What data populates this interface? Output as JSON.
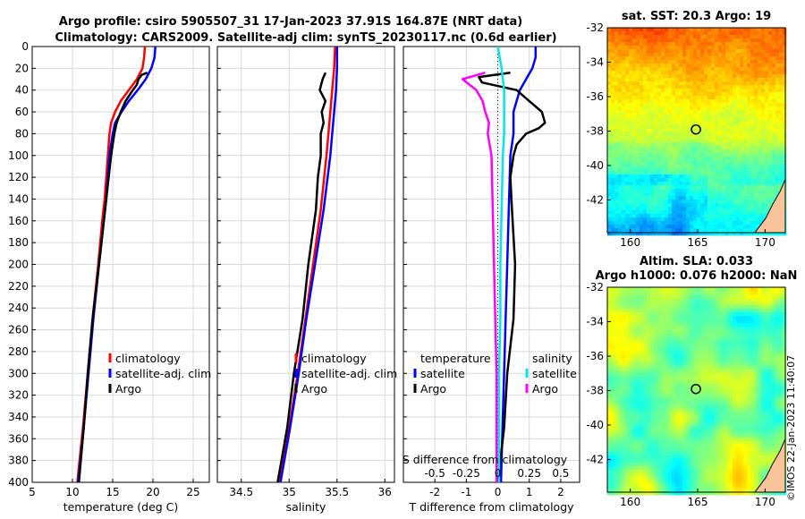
{
  "title": {
    "line1": "Argo profile: csiro 5905507_31 17-Jan-2023 37.91S 164.87E (NRT data)",
    "line2": "Climatology: CARS2009. Satellite-adj clim: synTS_20230117.nc (0.6d earlier)"
  },
  "credit": "©IMOS 22-Jan-2023 11:40:07",
  "colors": {
    "climatology": "#ff0000",
    "satellite": "#0000ff",
    "argo": "#000000",
    "sat_salinity": "#00e5ee",
    "argo_salinity": "#ff00ff"
  },
  "chart_data": [
    {
      "type": "line",
      "id": "temperature",
      "xlabel": "temperature (deg C)",
      "ylabel": "depth",
      "xlim": [
        5,
        27
      ],
      "ylim": [
        400,
        0
      ],
      "xticks": [
        5,
        10,
        15,
        20,
        25
      ],
      "yticks": [
        0,
        20,
        40,
        60,
        80,
        100,
        120,
        140,
        160,
        180,
        200,
        220,
        240,
        260,
        280,
        300,
        320,
        340,
        360,
        380,
        400
      ],
      "grid": true,
      "legend": [
        "climatology",
        "satellite-adj. clim",
        "Argo"
      ],
      "series": [
        {
          "name": "climatology",
          "depth": [
            0,
            10,
            20,
            30,
            40,
            50,
            60,
            70,
            80,
            100,
            120,
            140,
            160,
            200,
            250,
            300,
            350,
            400
          ],
          "values": [
            19.0,
            18.9,
            18.7,
            18.0,
            17.0,
            16.0,
            15.3,
            14.8,
            14.6,
            14.4,
            14.2,
            14.0,
            13.7,
            13.2,
            12.5,
            11.9,
            11.3,
            10.6
          ]
        },
        {
          "name": "satellite-adj. clim",
          "depth": [
            0,
            10,
            20,
            30,
            40,
            50,
            60,
            70,
            80,
            100,
            120,
            140,
            160,
            200,
            250,
            300,
            350,
            400
          ],
          "values": [
            20.3,
            20.2,
            19.8,
            19.1,
            18.1,
            17.0,
            16.1,
            15.3,
            15.0,
            14.6,
            14.4,
            14.2,
            13.9,
            13.3,
            12.6,
            12.0,
            11.4,
            10.7
          ]
        },
        {
          "name": "Argo",
          "depth": [
            24,
            26,
            30,
            35,
            40,
            50,
            60,
            70,
            80,
            90,
            100,
            120,
            140,
            160,
            200,
            250,
            300,
            350,
            400
          ],
          "values": [
            19.3,
            18.6,
            18.2,
            18.0,
            17.5,
            16.6,
            16.0,
            15.5,
            15.2,
            15.0,
            14.8,
            14.5,
            14.2,
            13.9,
            13.3,
            12.5,
            11.9,
            11.4,
            10.8
          ]
        }
      ]
    },
    {
      "type": "line",
      "id": "salinity",
      "xlabel": "salinity",
      "xlim": [
        34.25,
        36.1
      ],
      "ylim": [
        400,
        0
      ],
      "xticks": [
        34.5,
        35,
        35.5,
        36
      ],
      "yticks": [
        0,
        20,
        40,
        60,
        80,
        100,
        120,
        140,
        160,
        180,
        200,
        220,
        240,
        260,
        280,
        300,
        320,
        340,
        360,
        380,
        400
      ],
      "grid": true,
      "legend": [
        "climatology",
        "satellite-adj. clim",
        "Argo"
      ],
      "series": [
        {
          "name": "climatology",
          "depth": [
            0,
            20,
            40,
            60,
            80,
            100,
            150,
            200,
            250,
            300,
            350,
            400
          ],
          "values": [
            35.48,
            35.47,
            35.45,
            35.43,
            35.41,
            35.39,
            35.33,
            35.25,
            35.17,
            35.09,
            35.0,
            34.9
          ]
        },
        {
          "name": "satellite-adj. clim",
          "depth": [
            0,
            20,
            40,
            60,
            80,
            100,
            150,
            200,
            250,
            300,
            350,
            400
          ],
          "values": [
            35.5,
            35.5,
            35.49,
            35.47,
            35.45,
            35.43,
            35.36,
            35.27,
            35.18,
            35.1,
            35.01,
            34.91
          ]
        },
        {
          "name": "Argo",
          "depth": [
            24,
            30,
            40,
            50,
            60,
            70,
            80,
            100,
            120,
            150,
            200,
            250,
            300,
            350,
            400
          ],
          "values": [
            35.38,
            35.35,
            35.32,
            35.38,
            35.34,
            35.36,
            35.33,
            35.33,
            35.3,
            35.28,
            35.2,
            35.14,
            35.05,
            34.98,
            34.88
          ]
        }
      ]
    },
    {
      "type": "line",
      "id": "differences",
      "xlabel": "T difference from climatology",
      "xlabel_top": "S difference from climatology",
      "xlim": [
        -3,
        2.6
      ],
      "ylim": [
        400,
        0
      ],
      "xticks": [
        -2,
        -1,
        0,
        1,
        2
      ],
      "s_xticks": [
        "-0.5",
        "-0.25",
        "0",
        "0.25",
        "0.5"
      ],
      "yticks": [
        0,
        20,
        40,
        60,
        80,
        100,
        120,
        140,
        160,
        180,
        200,
        220,
        240,
        260,
        280,
        300,
        320,
        340,
        360,
        380,
        400
      ],
      "grid": true,
      "legend_temperature": {
        "title": "temperature",
        "items": [
          "satellite",
          "Argo"
        ]
      },
      "legend_salinity": {
        "title": "salinity",
        "items": [
          "satellite",
          "Argo"
        ]
      },
      "series": [
        {
          "name": "T satellite",
          "depth": [
            0,
            10,
            20,
            30,
            40,
            50,
            60,
            70,
            80,
            100,
            150,
            200,
            250,
            300,
            350,
            400
          ],
          "values": [
            1.2,
            1.2,
            1.1,
            0.9,
            0.7,
            0.6,
            0.5,
            0.5,
            0.5,
            0.4,
            0.35,
            0.3,
            0.25,
            0.2,
            0.15,
            0.1
          ]
        },
        {
          "name": "T Argo",
          "depth": [
            24,
            28,
            33,
            40,
            50,
            60,
            70,
            75,
            80,
            90,
            100,
            120,
            150,
            200,
            250,
            300,
            350,
            400
          ],
          "values": [
            0.4,
            -0.6,
            -0.5,
            0.6,
            1.0,
            1.4,
            1.5,
            1.3,
            0.9,
            0.6,
            0.5,
            0.4,
            0.45,
            0.55,
            0.5,
            0.3,
            0.2,
            0.0
          ]
        },
        {
          "name": "S satellite",
          "depth": [
            0,
            20,
            40,
            60,
            80,
            100,
            150,
            200,
            250,
            300,
            350,
            400
          ],
          "values": [
            0.0,
            0.03,
            0.05,
            0.05,
            0.05,
            0.04,
            0.03,
            0.02,
            0.02,
            0.01,
            0.01,
            0.01
          ]
        },
        {
          "name": "S Argo",
          "depth": [
            24,
            30,
            40,
            50,
            60,
            70,
            80,
            100,
            150,
            200,
            250,
            300,
            350,
            400
          ],
          "values": [
            -0.1,
            -0.28,
            -0.17,
            -0.12,
            -0.1,
            -0.07,
            -0.08,
            -0.05,
            -0.04,
            -0.03,
            -0.02,
            -0.01,
            -0.01,
            -0.01
          ]
        }
      ]
    },
    {
      "type": "heatmap",
      "id": "sst-map",
      "title": "sat. SST: 20.3 Argo: 19",
      "xticks": [
        160,
        165,
        170
      ],
      "yticks": [
        -32,
        -34,
        -36,
        -38,
        -40,
        -42
      ],
      "xlim": [
        158.3,
        171.5
      ],
      "ylim": [
        -43.9,
        -32
      ],
      "marker": {
        "lon": 164.87,
        "lat": -37.91
      }
    },
    {
      "type": "heatmap",
      "id": "sla-map",
      "title": "Altim. SLA: 0.033",
      "subtitle": "Argo h1000: 0.076 h2000: NaN",
      "xticks": [
        160,
        165,
        170
      ],
      "yticks": [
        -32,
        -34,
        -36,
        -38,
        -40,
        -42
      ],
      "xlim": [
        158.3,
        171.5
      ],
      "ylim": [
        -43.9,
        -32
      ],
      "marker": {
        "lon": 164.87,
        "lat": -37.91
      }
    }
  ]
}
